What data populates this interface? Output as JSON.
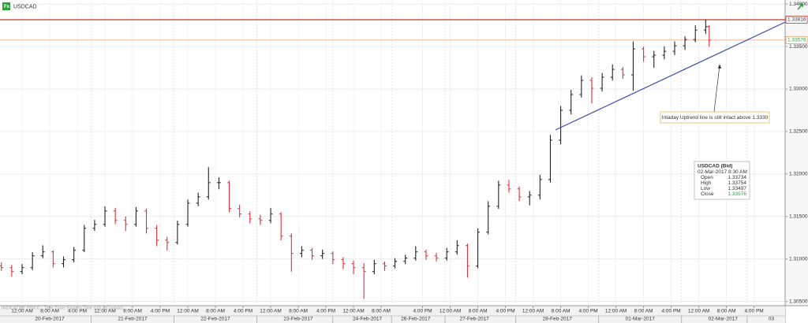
{
  "chart_data": {
    "type": "ohlc",
    "title": "USDCAD",
    "footer": "INDICATIVE PRICE - Time Zone: Eastern Time (US & Canada)",
    "ylim": [
      1.3045,
      1.3402
    ],
    "yticks": [
      {
        "value": 1.305,
        "label": "1.30500"
      },
      {
        "value": 1.31,
        "label": "1.31000"
      },
      {
        "value": 1.315,
        "label": "1.31500"
      },
      {
        "value": 1.32,
        "label": "1.32000"
      },
      {
        "value": 1.325,
        "label": "1.32500"
      },
      {
        "value": 1.33,
        "label": "1.33000"
      },
      {
        "value": 1.335,
        "label": "1.33500"
      },
      {
        "value": 1.34,
        "label": "1.34000"
      }
    ],
    "xlim": [
      -6.4,
      221
    ],
    "xticks": [
      {
        "value": 0,
        "label": "12:00 AM"
      },
      {
        "value": 8,
        "label": "8:00 AM"
      },
      {
        "value": 16,
        "label": "4:00 PM"
      },
      {
        "value": 24,
        "label": "12:00 AM"
      },
      {
        "value": 32,
        "label": "8:00 AM"
      },
      {
        "value": 40,
        "label": "4:00 PM"
      },
      {
        "value": 48,
        "label": "12:00 AM"
      },
      {
        "value": 56,
        "label": "8:00 AM"
      },
      {
        "value": 64,
        "label": "4:00 PM"
      },
      {
        "value": 72,
        "label": "12:00 AM"
      },
      {
        "value": 80,
        "label": "8:00 AM"
      },
      {
        "value": 88,
        "label": "4:00 PM"
      },
      {
        "value": 96,
        "label": "12:00 AM"
      },
      {
        "value": 104,
        "label": "8:00 AM"
      },
      {
        "value": 116,
        "label": "4:00 PM"
      },
      {
        "value": 124,
        "label": "12:00 AM"
      },
      {
        "value": 132,
        "label": "8:00 AM"
      },
      {
        "value": 140,
        "label": "4:00 PM"
      },
      {
        "value": 148,
        "label": "12:00 AM"
      },
      {
        "value": 156,
        "label": "8:00 AM"
      },
      {
        "value": 164,
        "label": "4:00 PM"
      },
      {
        "value": 172,
        "label": "12:00 AM"
      },
      {
        "value": 180,
        "label": "8:00 AM"
      },
      {
        "value": 188,
        "label": "4:00 PM"
      },
      {
        "value": 196,
        "label": "12:00 AM"
      },
      {
        "value": 204,
        "label": "8:00 AM"
      },
      {
        "value": 212,
        "label": "4:00 PM"
      }
    ],
    "date_ticks": [
      {
        "value": 8,
        "label": "20-Feb-2017"
      },
      {
        "value": 32,
        "label": "21-Feb-2017"
      },
      {
        "value": 56,
        "label": "22-Feb-2017"
      },
      {
        "value": 80,
        "label": "23-Feb-2017"
      },
      {
        "value": 100,
        "label": "24-Feb-2017"
      },
      {
        "value": 114,
        "label": "26-Feb-2017"
      },
      {
        "value": 131,
        "label": "27-Feb-2017"
      },
      {
        "value": 155,
        "label": "28-Feb-2017"
      },
      {
        "value": 179,
        "label": "01-Mar-2017"
      },
      {
        "value": 203,
        "label": "02-Mar-2017"
      },
      {
        "value": 217,
        "label": "03"
      }
    ],
    "grid": true,
    "series": [
      {
        "name": "USDCAD",
        "up_color": "#222222",
        "down_color": "#e0303a",
        "x": [
          -6,
          -3,
          0,
          3,
          6,
          9,
          12,
          15,
          18,
          21,
          24,
          27,
          30,
          33,
          36,
          39,
          42,
          45,
          48,
          51,
          54,
          57,
          60,
          63,
          66,
          69,
          72,
          75,
          78,
          81,
          84,
          87,
          90,
          93,
          96,
          99,
          102,
          105,
          108,
          111,
          114,
          117,
          120,
          123,
          126,
          129,
          132,
          135,
          138,
          141,
          144,
          147,
          150,
          153,
          156,
          159,
          162,
          165,
          168,
          171,
          174,
          177,
          180,
          183,
          186,
          189,
          192,
          195,
          198,
          199
        ],
        "open": [
          1.3092,
          1.30898,
          1.30852,
          1.30898,
          1.31037,
          1.31083,
          1.30944,
          1.30991,
          1.31102,
          1.31361,
          1.31407,
          1.31565,
          1.31454,
          1.31407,
          1.31565,
          1.31361,
          1.31222,
          1.31194,
          1.31407,
          1.31657,
          1.31731,
          1.31898,
          1.31898,
          1.31593,
          1.31528,
          1.31472,
          1.31454,
          1.31528,
          1.31269,
          1.31065,
          1.31102,
          1.31037,
          1.31065,
          1.30991,
          1.30944,
          1.30898,
          1.30852,
          1.30944,
          1.30917,
          1.30972,
          1.31009,
          1.31083,
          1.31037,
          1.31009,
          1.31083,
          1.31157,
          1.30917,
          1.31315,
          1.3162,
          1.3187,
          1.31824,
          1.31731,
          1.3175,
          1.31935,
          1.32398,
          1.3275,
          1.32935,
          1.33102,
          1.33009,
          1.33139,
          1.33231,
          1.33167,
          1.33472,
          1.3338,
          1.33398,
          1.33444,
          1.33509,
          1.33583,
          1.33694,
          1.33734
        ],
        "high": [
          1.3096,
          1.3093,
          1.3094,
          1.3108,
          1.3116,
          1.311,
          1.3103,
          1.3114,
          1.314,
          1.3146,
          1.3162,
          1.316,
          1.315,
          1.3161,
          1.3159,
          1.314,
          1.3126,
          1.3145,
          1.317,
          1.3178,
          1.3208,
          1.3196,
          1.3192,
          1.3164,
          1.3156,
          1.3152,
          1.316,
          1.3155,
          1.313,
          1.3115,
          1.3113,
          1.3111,
          1.3109,
          1.3102,
          1.3098,
          1.3095,
          1.3099,
          1.3097,
          1.3101,
          1.3105,
          1.3115,
          1.3111,
          1.3107,
          1.3113,
          1.3122,
          1.3118,
          1.3136,
          1.3168,
          1.3192,
          1.3193,
          1.3185,
          1.318,
          1.3199,
          1.3246,
          1.328,
          1.3299,
          1.3316,
          1.3314,
          1.3319,
          1.3329,
          1.3326,
          1.3356,
          1.335,
          1.3345,
          1.335,
          1.3356,
          1.3362,
          1.3375,
          1.33816,
          1.33754
        ],
        "low": [
          1.3086,
          1.3079,
          1.3082,
          1.3087,
          1.3101,
          1.309,
          1.309,
          1.3096,
          1.3108,
          1.3133,
          1.3138,
          1.3141,
          1.3133,
          1.3138,
          1.313,
          1.3115,
          1.311,
          1.3117,
          1.3138,
          1.3162,
          1.317,
          1.3182,
          1.3155,
          1.3149,
          1.3142,
          1.314,
          1.3142,
          1.3122,
          1.3085,
          1.3102,
          1.3099,
          1.31,
          1.3094,
          1.3088,
          1.3082,
          1.3053,
          1.3082,
          1.3086,
          1.3089,
          1.3094,
          1.3098,
          1.3099,
          1.3097,
          1.3098,
          1.3105,
          1.3078,
          1.3089,
          1.3129,
          1.3159,
          1.3178,
          1.3168,
          1.3163,
          1.317,
          1.319,
          1.3235,
          1.327,
          1.329,
          1.3283,
          1.3297,
          1.331,
          1.3312,
          1.3298,
          1.3332,
          1.3325,
          1.3335,
          1.334,
          1.3346,
          1.3355,
          1.3365,
          1.33497
        ],
        "close": [
          1.30898,
          1.30852,
          1.30898,
          1.31037,
          1.31083,
          1.30944,
          1.30991,
          1.31102,
          1.31361,
          1.31407,
          1.31565,
          1.31454,
          1.31407,
          1.31565,
          1.31361,
          1.31222,
          1.31194,
          1.31407,
          1.31657,
          1.31731,
          1.31898,
          1.31898,
          1.31593,
          1.31528,
          1.31472,
          1.31454,
          1.31528,
          1.31269,
          1.31065,
          1.31102,
          1.31037,
          1.31065,
          1.30991,
          1.30944,
          1.30898,
          1.30852,
          1.30944,
          1.30917,
          1.30972,
          1.31009,
          1.31083,
          1.31037,
          1.31009,
          1.31083,
          1.31157,
          1.30917,
          1.31315,
          1.3162,
          1.3187,
          1.31824,
          1.31731,
          1.3175,
          1.31935,
          1.32398,
          1.3275,
          1.32935,
          1.33102,
          1.33009,
          1.33139,
          1.33231,
          1.33167,
          1.33472,
          1.3338,
          1.33398,
          1.33444,
          1.33509,
          1.33583,
          1.33694,
          1.33734,
          1.33576
        ]
      }
    ],
    "hlines": [
      {
        "value": 1.33816,
        "label": "1.33816",
        "color": "#c0392b"
      },
      {
        "value": 1.33576,
        "label": "1.33576",
        "color": "#e8a070"
      }
    ],
    "trendline": {
      "x": [
        154.5,
        221
      ],
      "y": [
        1.32519,
        1.33787
      ],
      "color": "#3a4fa8"
    },
    "annotation": "Intaday Uptrend line is still intact above 1.3330",
    "tooltip": {
      "title": "USDCAD (Bid)",
      "time": "02-Mar-2017 8:30 AM",
      "rows": [
        {
          "label": "Open",
          "value": 1.33734
        },
        {
          "label": "High",
          "value": 1.33754
        },
        {
          "label": "Low",
          "value": 1.33497
        },
        {
          "label": "Close",
          "value": 1.33576
        }
      ]
    }
  }
}
